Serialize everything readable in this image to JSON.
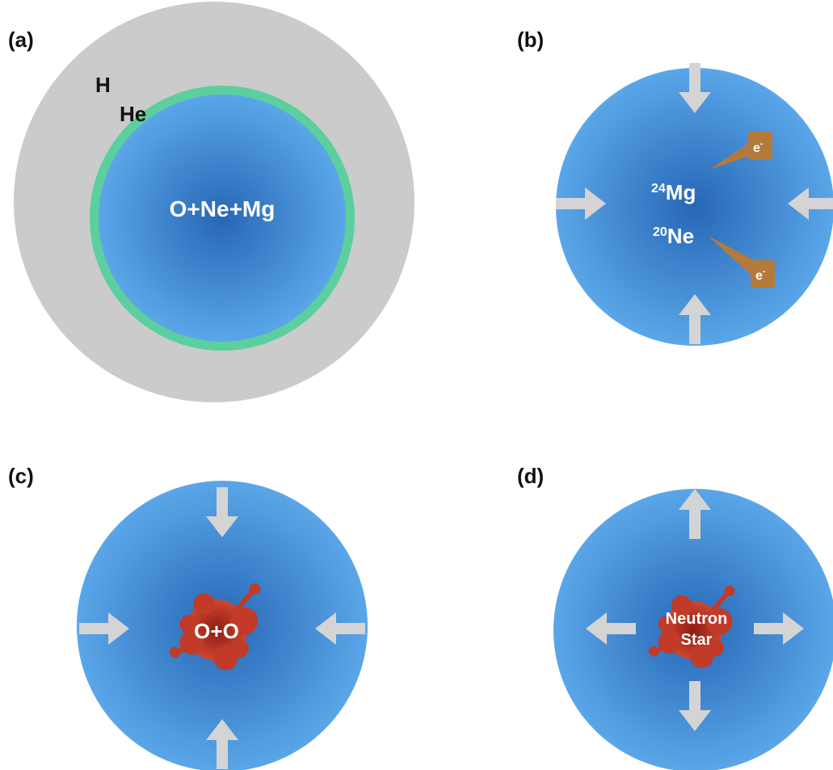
{
  "panels": [
    {
      "label": "(a)",
      "layers": [
        "H",
        "He"
      ],
      "core": "O+Ne+Mg"
    },
    {
      "label": "(b)",
      "nuclei": [
        {
          "mass": "24",
          "symbol": "Mg"
        },
        {
          "mass": "20",
          "symbol": "Ne"
        }
      ],
      "electrons": [
        {
          "symbol": "e",
          "charge": "-"
        },
        {
          "symbol": "e",
          "charge": "-"
        }
      ]
    },
    {
      "label": "(c)",
      "core": "O+O"
    },
    {
      "label": "(d)",
      "core": [
        "Neutron",
        "Star"
      ]
    }
  ]
}
